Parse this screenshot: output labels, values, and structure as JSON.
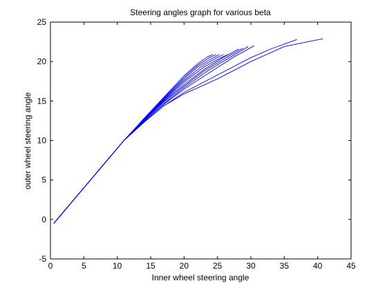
{
  "chart_data": {
    "type": "line",
    "title": "Steering angles graph for various beta",
    "xlabel": "Inner wheel steering angle",
    "ylabel": "outer wheel steering angle",
    "xlim": [
      0,
      45
    ],
    "ylim": [
      -5,
      25
    ],
    "xticks": [
      0,
      5,
      10,
      15,
      20,
      25,
      30,
      35,
      40,
      45
    ],
    "yticks": [
      -5,
      0,
      5,
      10,
      15,
      20,
      25
    ],
    "grid": false,
    "legend": "none",
    "line_color": "#0000ff",
    "series": [
      {
        "x": [
          0.5,
          4.5,
          8,
          11,
          14,
          17,
          20,
          22,
          23.5,
          24.3
        ],
        "y": [
          -0.5,
          3.5,
          7,
          10,
          12.8,
          15.5,
          18.2,
          19.7,
          20.6,
          20.9
        ]
      },
      {
        "x": [
          0.5,
          4.5,
          8,
          11,
          14,
          17,
          20,
          22,
          23.8,
          24.8
        ],
        "y": [
          -0.5,
          3.5,
          7,
          10,
          12.7,
          15.4,
          18.0,
          19.5,
          20.5,
          20.9
        ]
      },
      {
        "x": [
          0.5,
          4.5,
          8,
          11,
          14,
          17,
          20,
          22,
          24.2,
          25.3
        ],
        "y": [
          -0.5,
          3.5,
          7,
          10,
          12.7,
          15.3,
          17.8,
          19.3,
          20.4,
          20.9
        ]
      },
      {
        "x": [
          0.5,
          4.5,
          8,
          11,
          14,
          17,
          20,
          22.5,
          24.7,
          25.9
        ],
        "y": [
          -0.5,
          3.5,
          7,
          10,
          12.6,
          15.2,
          17.6,
          19.3,
          20.4,
          20.9
        ]
      },
      {
        "x": [
          0.5,
          4.5,
          8,
          11,
          14,
          17,
          20,
          23,
          25.3,
          26.6
        ],
        "y": [
          -0.5,
          3.5,
          7,
          10,
          12.6,
          15.1,
          17.4,
          19.3,
          20.4,
          20.9
        ]
      },
      {
        "x": [
          0.5,
          4.5,
          8,
          11,
          14,
          17,
          20,
          23,
          26,
          28.2
        ],
        "y": [
          -0.5,
          3.5,
          7,
          10,
          12.5,
          15.0,
          17.1,
          19.0,
          20.6,
          21.6
        ]
      },
      {
        "x": [
          0.5,
          4.5,
          8,
          11,
          14,
          17,
          20,
          23,
          26.5,
          28.8
        ],
        "y": [
          -0.5,
          3.5,
          7,
          10,
          12.5,
          14.9,
          16.9,
          18.8,
          20.6,
          21.7
        ]
      },
      {
        "x": [
          0.5,
          4.5,
          8,
          11,
          14,
          17,
          20,
          23.5,
          27,
          29.6
        ],
        "y": [
          -0.5,
          3.5,
          7,
          10,
          12.4,
          14.7,
          16.7,
          18.8,
          20.6,
          21.9
        ]
      },
      {
        "x": [
          0.5,
          4.5,
          8,
          11,
          14,
          17,
          20,
          24,
          27.5,
          30.5
        ],
        "y": [
          -0.5,
          3.5,
          7,
          10,
          12.4,
          14.6,
          16.5,
          18.7,
          20.6,
          22.0
        ]
      },
      {
        "x": [
          0.5,
          4.5,
          8,
          11,
          14,
          17,
          20,
          25,
          30,
          33,
          36.9
        ],
        "y": [
          -0.5,
          3.5,
          7,
          10,
          12.3,
          14.4,
          16.1,
          18.3,
          20.5,
          21.6,
          22.8
        ]
      },
      {
        "x": [
          0.5,
          4.5,
          8,
          11,
          14,
          17,
          20,
          25,
          30,
          35,
          40.8
        ],
        "y": [
          -0.5,
          3.5,
          7,
          10,
          12.3,
          14.4,
          15.9,
          17.8,
          20.0,
          21.9,
          22.9
        ]
      }
    ]
  }
}
